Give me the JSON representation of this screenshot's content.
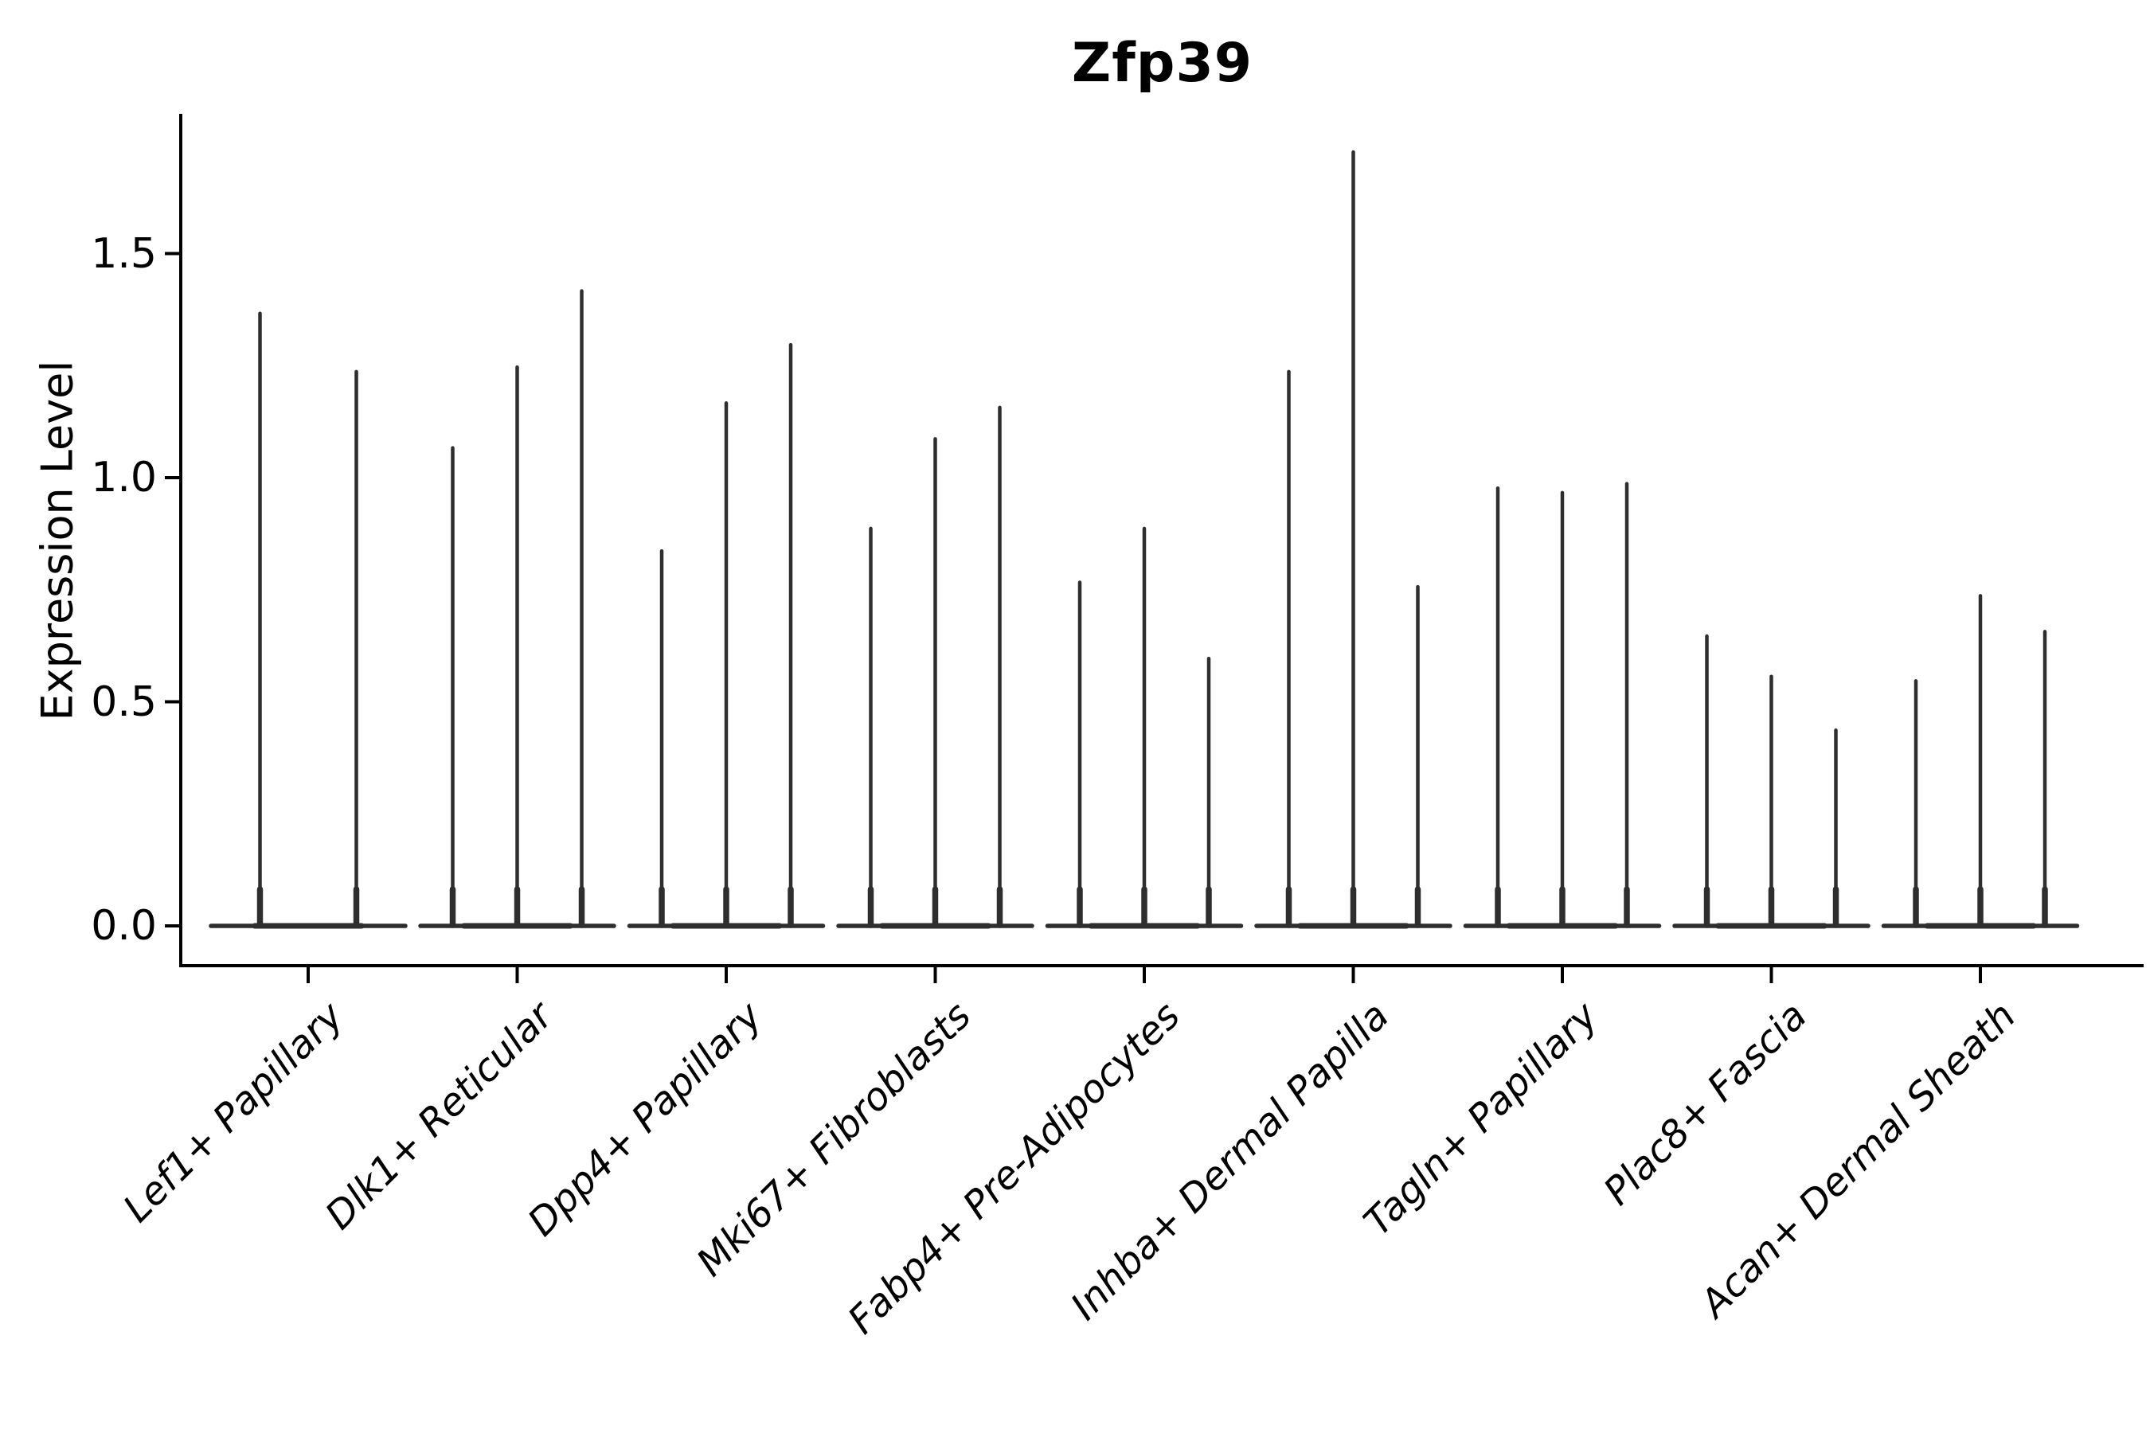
{
  "title": "Zfp39",
  "ylabel": "Expression Level",
  "chart_data": {
    "type": "violin",
    "title": "Zfp39",
    "xlabel": "",
    "ylabel": "Expression Level",
    "ylim": [
      -0.09,
      1.81
    ],
    "yticks": [
      0.0,
      0.5,
      1.0,
      1.5
    ],
    "ytick_labels": [
      "0.0",
      "0.5",
      "1.0",
      "1.5"
    ],
    "grid": false,
    "legend": "none",
    "categories": [
      "Lef1+ Papillary",
      "Dlk1+ Reticular",
      "Dpp4+ Papillary",
      "Mki67+ Fibroblasts",
      "Fabp4+ Pre-Adipocytes",
      "Inhba+ Dermal Papilla",
      "Tagln+ Papillary",
      "Plac8+ Fascia",
      "Acan+ Dermal Sheath"
    ],
    "groups": [
      {
        "category": "Lef1+ Papillary",
        "violin_maxima": [
          1.37,
          1.24
        ]
      },
      {
        "category": "Dlk1+ Reticular",
        "violin_maxima": [
          1.07,
          1.25,
          1.42
        ]
      },
      {
        "category": "Dpp4+ Papillary",
        "violin_maxima": [
          0.84,
          1.17,
          1.3
        ]
      },
      {
        "category": "Mki67+ Fibroblasts",
        "violin_maxima": [
          0.89,
          1.09,
          1.16
        ]
      },
      {
        "category": "Fabp4+ Pre-Adipocytes",
        "violin_maxima": [
          0.77,
          0.89,
          0.6
        ]
      },
      {
        "category": "Inhba+ Dermal Papilla",
        "violin_maxima": [
          1.24,
          1.73,
          0.76
        ]
      },
      {
        "category": "Tagln+ Papillary",
        "violin_maxima": [
          0.98,
          0.97,
          0.99
        ]
      },
      {
        "category": "Plac8+ Fascia",
        "violin_maxima": [
          0.65,
          0.56,
          0.44
        ]
      },
      {
        "category": "Acan+ Dermal Sheath",
        "violin_maxima": [
          0.55,
          0.74,
          0.66
        ]
      }
    ],
    "baseline_value": 0.0,
    "violin_style": "zero-inflated spike (flat base at 0 with thin stem to max)",
    "colors": {
      "violin": "#2e2e2e",
      "axis": "#000000",
      "text": "#000000",
      "background": "#ffffff"
    }
  }
}
